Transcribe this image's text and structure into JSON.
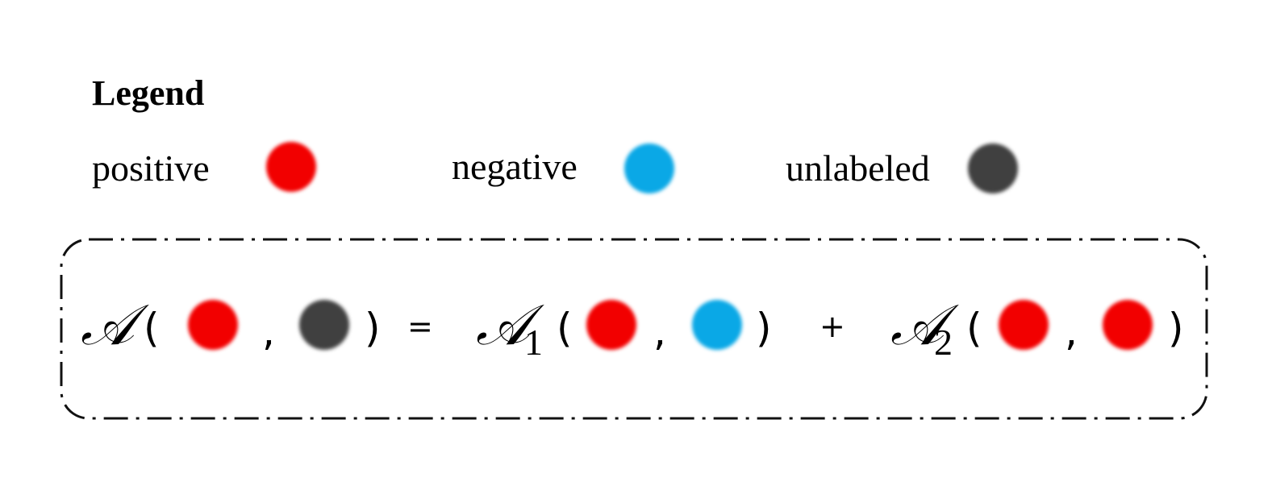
{
  "legend": {
    "title": "Legend",
    "items": [
      {
        "label": "positive",
        "color": "#f20000"
      },
      {
        "label": "negative",
        "color": "#0aa8e6"
      },
      {
        "label": "unlabeled",
        "color": "#404040"
      }
    ]
  },
  "equation": {
    "lhs_symbol": "𝒜",
    "term1_symbol": "𝒜",
    "term1_subscript": "1",
    "term2_symbol": "𝒜",
    "term2_subscript": "2",
    "open_paren": "(",
    "close_paren": ")",
    "comma": ",",
    "equals": "=",
    "plus": "+"
  }
}
